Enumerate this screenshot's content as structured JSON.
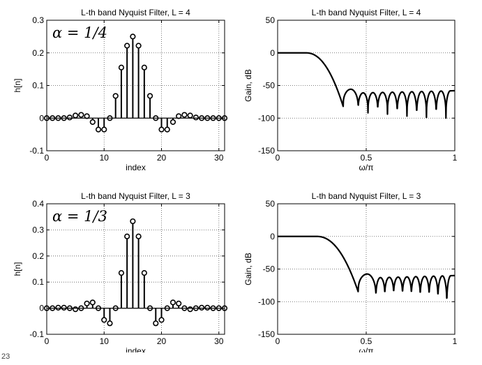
{
  "page_number": "23",
  "chart_data": [
    {
      "type": "stem",
      "title": "L-th band Nyquist Filter, L = 4",
      "xlabel": "index",
      "ylabel": "h[n]",
      "annotation": "α = 1/4",
      "xlim": [
        0,
        31
      ],
      "ylim": [
        -0.1,
        0.3
      ],
      "xticks": [
        "0",
        "10",
        "20",
        "30"
      ],
      "xtick_values": [
        0,
        10,
        20,
        30
      ],
      "yticks": [
        "-0.1",
        "0",
        "0.1",
        "0.2",
        "0.3"
      ],
      "ytick_values": [
        -0.1,
        0,
        0.1,
        0.2,
        0.3
      ],
      "grid": true,
      "marker": "circle",
      "x": [
        0,
        1,
        2,
        3,
        4,
        5,
        6,
        7,
        8,
        9,
        10,
        11,
        12,
        13,
        14,
        15,
        16,
        17,
        18,
        19,
        20,
        21,
        22,
        23,
        24,
        25,
        26,
        27,
        28,
        29,
        30,
        31
      ],
      "values": [
        0,
        0,
        0,
        0,
        0.002,
        0.008,
        0.01,
        0.006,
        -0.012,
        -0.035,
        -0.035,
        0,
        0.068,
        0.155,
        0.222,
        0.25,
        0.222,
        0.155,
        0.068,
        0,
        -0.035,
        -0.035,
        -0.012,
        0.006,
        0.01,
        0.008,
        0.002,
        0,
        0,
        0,
        0,
        0
      ]
    },
    {
      "type": "line",
      "title": "L-th band Nyquist Filter, L = 4",
      "xlabel": "ω/π",
      "ylabel": "Gain, dB",
      "xlim": [
        0,
        1
      ],
      "ylim": [
        -150,
        50
      ],
      "xticks": [
        "0",
        "0.5",
        "1"
      ],
      "xtick_values": [
        0,
        0.5,
        1
      ],
      "yticks": [
        "-150",
        "-100",
        "-50",
        "0",
        "50"
      ],
      "ytick_values": [
        -150,
        -100,
        -50,
        0,
        50
      ],
      "grid": true,
      "passband_gain_db": 0,
      "transition_start": 0.16,
      "transition_end": 0.37,
      "stopband_level_db": -60,
      "stopband_nulls": [
        {
          "x": 0.37,
          "y": -82
        },
        {
          "x": 0.455,
          "y": -88
        },
        {
          "x": 0.51,
          "y": -92
        },
        {
          "x": 0.565,
          "y": -92
        },
        {
          "x": 0.62,
          "y": -94
        },
        {
          "x": 0.675,
          "y": -96
        },
        {
          "x": 0.73,
          "y": -97
        },
        {
          "x": 0.785,
          "y": -100
        },
        {
          "x": 0.84,
          "y": -99
        },
        {
          "x": 0.895,
          "y": -98
        },
        {
          "x": 0.95,
          "y": -100
        }
      ]
    },
    {
      "type": "stem",
      "title": "L-th band Nyquist Filter, L = 3",
      "xlabel": "index",
      "ylabel": "h[n]",
      "annotation": "α = 1/3",
      "xlim": [
        0,
        31
      ],
      "ylim": [
        -0.1,
        0.4
      ],
      "xticks": [
        "0",
        "10",
        "20",
        "30"
      ],
      "xtick_values": [
        0,
        10,
        20,
        30
      ],
      "yticks": [
        "-0.1",
        "0",
        "0.1",
        "0.2",
        "0.3",
        "0.4"
      ],
      "ytick_values": [
        -0.1,
        0,
        0.1,
        0.2,
        0.3,
        0.4
      ],
      "grid": true,
      "marker": "circle",
      "x": [
        0,
        1,
        2,
        3,
        4,
        5,
        6,
        7,
        8,
        9,
        10,
        11,
        12,
        13,
        14,
        15,
        16,
        17,
        18,
        19,
        20,
        21,
        22,
        23,
        24,
        25,
        26,
        27,
        28,
        29,
        30,
        31
      ],
      "values": [
        0,
        0,
        0.002,
        0.002,
        0,
        -0.004,
        0,
        0.018,
        0.022,
        0,
        -0.045,
        -0.058,
        0,
        0.135,
        0.275,
        0.333,
        0.275,
        0.135,
        0,
        -0.058,
        -0.045,
        0,
        0.022,
        0.018,
        0,
        -0.004,
        0,
        0.002,
        0.002,
        0,
        0,
        0
      ]
    },
    {
      "type": "line",
      "title": "L-th band Nyquist Filter, L = 3",
      "xlabel": "ω/π",
      "ylabel": "Gain, dB",
      "xlim": [
        0,
        1
      ],
      "ylim": [
        -150,
        50
      ],
      "xticks": [
        "0",
        "0.5",
        "1"
      ],
      "xtick_values": [
        0,
        0.5,
        1
      ],
      "yticks": [
        "-150",
        "-100",
        "-50",
        "0",
        "50"
      ],
      "ytick_values": [
        -150,
        -100,
        -50,
        0,
        50
      ],
      "grid": true,
      "passband_gain_db": 0,
      "transition_start": 0.22,
      "transition_end": 0.455,
      "stopband_level_db": -62,
      "stopband_nulls": [
        {
          "x": 0.455,
          "y": -85
        },
        {
          "x": 0.555,
          "y": -96
        },
        {
          "x": 0.605,
          "y": -94
        },
        {
          "x": 0.655,
          "y": -92
        },
        {
          "x": 0.705,
          "y": -93
        },
        {
          "x": 0.755,
          "y": -94
        },
        {
          "x": 0.805,
          "y": -96
        },
        {
          "x": 0.855,
          "y": -96
        },
        {
          "x": 0.905,
          "y": -100
        },
        {
          "x": 0.955,
          "y": -110
        }
      ]
    }
  ]
}
